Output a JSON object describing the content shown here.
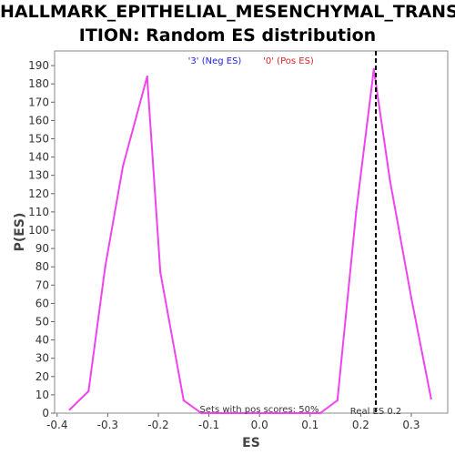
{
  "title_line1": "HALLMARK_EPITHELIAL_MESENCHYMAL_TRANS",
  "title_line2": "ITION: Random ES distribution",
  "colors": {
    "series": "#ee44ee",
    "neg_label": "#2222dd",
    "pos_label": "#dd2222",
    "real_es_line": "#000000",
    "plot_border": "#888888",
    "background": "#ffffff"
  },
  "chart_data": {
    "type": "line",
    "title": "HALLMARK_EPITHELIAL_MESENCHYMAL_TRANSITION: Random ES distribution",
    "xlabel": "ES",
    "ylabel": "P(ES)",
    "xlim": [
      -0.405,
      0.372
    ],
    "ylim": [
      0,
      198
    ],
    "x_ticks": [
      -0.4,
      -0.3,
      -0.2,
      -0.1,
      0.0,
      0.1,
      0.2,
      0.3
    ],
    "x_tick_labels": [
      "-0.4",
      "-0.3",
      "-0.2",
      "-0.1",
      "0.0",
      "0.1",
      "0.2",
      "0.3"
    ],
    "y_ticks": [
      0,
      10,
      20,
      30,
      40,
      50,
      60,
      70,
      80,
      90,
      100,
      110,
      120,
      130,
      140,
      150,
      160,
      170,
      180,
      190
    ],
    "y_tick_labels": [
      "0",
      "10",
      "20",
      "30",
      "40",
      "50",
      "60",
      "70",
      "80",
      "90",
      "100",
      "110",
      "120",
      "130",
      "140",
      "150",
      "160",
      "170",
      "180",
      "190"
    ],
    "grid": false,
    "series": [
      {
        "x": [
          -0.375,
          -0.338,
          -0.305,
          -0.27,
          -0.222,
          -0.196,
          -0.15,
          -0.115,
          0.0,
          0.12,
          0.154,
          0.191,
          0.226,
          0.258,
          0.3,
          0.339
        ],
        "values": [
          2,
          12,
          80,
          135,
          184,
          77,
          7,
          0,
          0,
          0,
          7,
          110,
          188,
          127,
          63,
          8
        ]
      }
    ],
    "legend": {
      "neg_label": "'3' (Neg ES)",
      "pos_label": "'0' (Pos ES)"
    },
    "real_es": {
      "x": 0.23,
      "label": "Real ES 0.2"
    },
    "annotation": "Sets with pos scores: 50%"
  }
}
